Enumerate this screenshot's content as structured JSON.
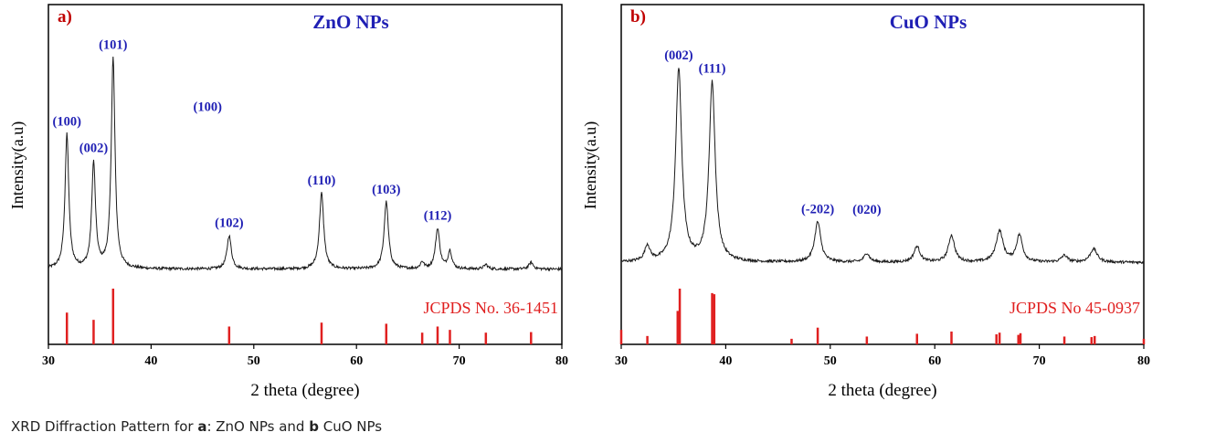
{
  "caption": {
    "prefix": "XRD Diffraction Pattern for ",
    "a_letter": "a",
    "a_text": ": ZnO NPs and ",
    "b_letter": "b",
    "b_text": " CuO NPs"
  },
  "colors": {
    "trace": "#1a1a1a",
    "reference": "#e02020",
    "peak_label": "#1f1fb4",
    "panel_letter": "#c00000",
    "title": "#1f1fb4"
  },
  "chart_data": [
    {
      "type": "line",
      "panel_label": "a)",
      "title": "ZnO NPs",
      "xlabel": "2 theta (degree)",
      "ylabel": "Intensity(a.u)",
      "xlim": [
        30,
        80
      ],
      "x_ticks": [
        "30",
        "40",
        "50",
        "60",
        "70",
        "80"
      ],
      "ylim": [
        0,
        1
      ],
      "baseline": 0.03,
      "series": [
        {
          "kind": "xrd",
          "peaks": [
            {
              "x": 31.8,
              "h": 0.6,
              "w": 0.22
            },
            {
              "x": 34.4,
              "h": 0.47,
              "w": 0.22
            },
            {
              "x": 36.3,
              "h": 0.94,
              "w": 0.22
            },
            {
              "x": 47.6,
              "h": 0.15,
              "w": 0.25
            },
            {
              "x": 56.6,
              "h": 0.34,
              "w": 0.25
            },
            {
              "x": 62.9,
              "h": 0.3,
              "w": 0.25
            },
            {
              "x": 66.4,
              "h": 0.03,
              "w": 0.2
            },
            {
              "x": 67.9,
              "h": 0.18,
              "w": 0.25
            },
            {
              "x": 69.1,
              "h": 0.08,
              "w": 0.22
            },
            {
              "x": 72.6,
              "h": 0.02,
              "w": 0.22
            },
            {
              "x": 77.0,
              "h": 0.03,
              "w": 0.25
            }
          ]
        }
      ],
      "peak_labels": [
        {
          "text": "(100)",
          "x": 31.8
        },
        {
          "text": "(002)",
          "x": 34.4
        },
        {
          "text": "(101)",
          "x": 36.3
        },
        {
          "text": "(100)",
          "x": 45.5,
          "y": 0.7
        },
        {
          "text": "(102)",
          "x": 47.6
        },
        {
          "text": "(110)",
          "x": 56.6
        },
        {
          "text": "(103)",
          "x": 62.9
        },
        {
          "text": "(112)",
          "x": 67.9
        }
      ],
      "reference_label": "JCPDS No. 36-1451",
      "reference_lines": [
        {
          "x": 31.8,
          "i": 0.57
        },
        {
          "x": 34.4,
          "i": 0.44
        },
        {
          "x": 36.3,
          "i": 1.0
        },
        {
          "x": 47.6,
          "i": 0.32
        },
        {
          "x": 56.6,
          "i": 0.39
        },
        {
          "x": 62.9,
          "i": 0.37
        },
        {
          "x": 66.4,
          "i": 0.21
        },
        {
          "x": 67.9,
          "i": 0.32
        },
        {
          "x": 69.1,
          "i": 0.26
        },
        {
          "x": 72.6,
          "i": 0.21
        },
        {
          "x": 77.0,
          "i": 0.22
        }
      ]
    },
    {
      "type": "line",
      "panel_label": "b)",
      "title": "CuO NPs",
      "xlabel": "2 theta (degree)",
      "ylabel": "Intensity(a.u)",
      "xlim": [
        30,
        80
      ],
      "x_ticks": [
        "30",
        "40",
        "50",
        "60",
        "70",
        "80"
      ],
      "ylim": [
        0,
        1
      ],
      "baseline": 0.06,
      "series": [
        {
          "kind": "xrd",
          "peaks": [
            {
              "x": 32.5,
              "h": 0.07,
              "w": 0.3
            },
            {
              "x": 35.5,
              "h": 0.86,
              "w": 0.35
            },
            {
              "x": 38.7,
              "h": 0.8,
              "w": 0.35
            },
            {
              "x": 48.8,
              "h": 0.18,
              "w": 0.35
            },
            {
              "x": 53.5,
              "h": 0.04,
              "w": 0.3
            },
            {
              "x": 58.3,
              "h": 0.07,
              "w": 0.35
            },
            {
              "x": 61.6,
              "h": 0.12,
              "w": 0.35
            },
            {
              "x": 66.2,
              "h": 0.14,
              "w": 0.4
            },
            {
              "x": 68.1,
              "h": 0.12,
              "w": 0.35
            },
            {
              "x": 72.4,
              "h": 0.03,
              "w": 0.35
            },
            {
              "x": 75.2,
              "h": 0.06,
              "w": 0.4
            }
          ]
        }
      ],
      "peak_labels": [
        {
          "text": "(002)",
          "x": 35.5
        },
        {
          "text": "(111)",
          "x": 38.7
        },
        {
          "text": "(-202)",
          "x": 48.8
        },
        {
          "text": "(020)",
          "x": 53.5,
          "y": 0.24
        }
      ],
      "reference_label": "JCPDS No 45-0937",
      "reference_lines": [
        {
          "x": 30.0,
          "i": 0.26
        },
        {
          "x": 32.5,
          "i": 0.15
        },
        {
          "x": 35.4,
          "i": 0.6
        },
        {
          "x": 35.6,
          "i": 1.0
        },
        {
          "x": 38.7,
          "i": 0.92
        },
        {
          "x": 38.9,
          "i": 0.9
        },
        {
          "x": 46.3,
          "i": 0.1
        },
        {
          "x": 48.8,
          "i": 0.3
        },
        {
          "x": 53.5,
          "i": 0.14
        },
        {
          "x": 58.3,
          "i": 0.19
        },
        {
          "x": 61.6,
          "i": 0.23
        },
        {
          "x": 65.9,
          "i": 0.18
        },
        {
          "x": 66.2,
          "i": 0.21
        },
        {
          "x": 68.0,
          "i": 0.17
        },
        {
          "x": 68.2,
          "i": 0.2
        },
        {
          "x": 72.4,
          "i": 0.14
        },
        {
          "x": 75.0,
          "i": 0.13
        },
        {
          "x": 75.3,
          "i": 0.15
        },
        {
          "x": 80.0,
          "i": 0.1
        }
      ]
    }
  ]
}
